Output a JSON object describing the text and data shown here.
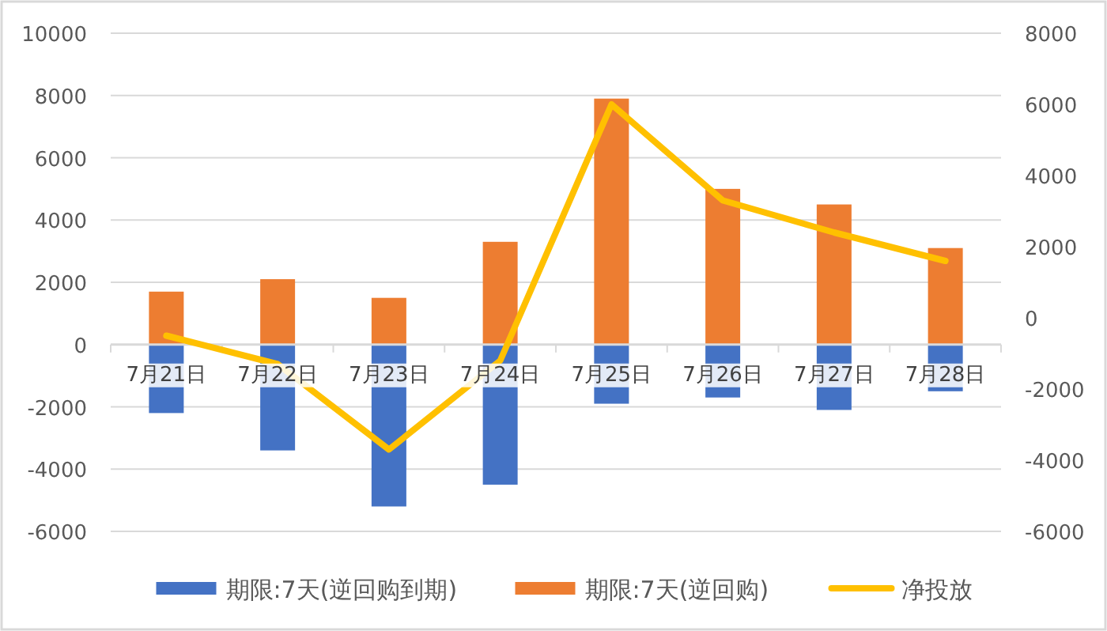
{
  "chart_data": {
    "type": "bar",
    "stacked": true,
    "categories": [
      "7月21日",
      "7月22日",
      "7月23日",
      "7月24日",
      "7月25日",
      "7月26日",
      "7月27日",
      "7月28日"
    ],
    "series": [
      {
        "name": "期限:7天(逆回购到期)",
        "color": "#4472c4",
        "values": [
          -2200,
          -3400,
          -5200,
          -4500,
          -1900,
          -1700,
          -2100,
          -1500
        ]
      },
      {
        "name": "期限:7天(逆回购)",
        "color": "#ed7d31",
        "values": [
          1700,
          2100,
          1500,
          3300,
          7900,
          5000,
          4500,
          3100
        ]
      },
      {
        "name": "净投放",
        "type": "line",
        "axis": "y2",
        "color": "#ffc000",
        "values": [
          -500,
          -1300,
          -3700,
          -1200,
          6000,
          3300,
          2400,
          1600
        ]
      }
    ],
    "ylim": [
      -6000,
      10000
    ],
    "yticks": [
      -6000,
      -4000,
      -2000,
      0,
      2000,
      4000,
      6000,
      8000,
      10000
    ],
    "y2lim": [
      -6000,
      8000
    ],
    "y2ticks": [
      -6000,
      -4000,
      -2000,
      0,
      2000,
      4000,
      6000,
      8000
    ],
    "grid": "y",
    "legend": "bottom",
    "marker": "none"
  }
}
